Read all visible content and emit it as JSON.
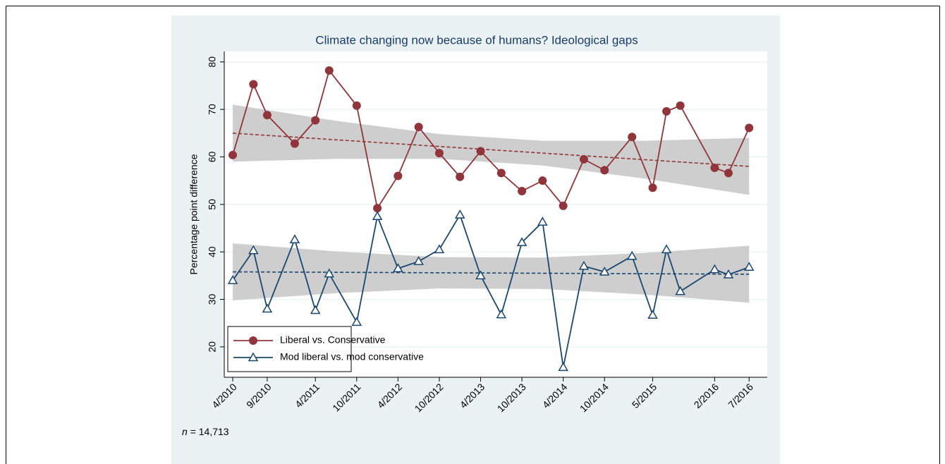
{
  "chart_data": {
    "type": "line",
    "title": "Climate changing now because of humans?  Ideological gaps",
    "y_label": "Percentage point difference",
    "annotation": {
      "variable": "n",
      "text": "= 14,713"
    },
    "x": [
      2010.25,
      2010.5,
      2010.667,
      2011.0,
      2011.25,
      2011.417,
      2011.75,
      2012.0,
      2012.25,
      2012.5,
      2012.75,
      2013.0,
      2013.25,
      2013.5,
      2013.75,
      2014.0,
      2014.25,
      2014.5,
      2014.75,
      2015.083,
      2015.333,
      2015.5,
      2015.667,
      2016.083,
      2016.25,
      2016.5
    ],
    "series": [
      {
        "name": "Liberal vs. Conservative",
        "color": "#90353b",
        "marker": "circle",
        "values": [
          60.4,
          75.3,
          68.8,
          62.8,
          67.7,
          78.2,
          70.8,
          49.2,
          56,
          66.3,
          60.8,
          55.8,
          61.2,
          56.6,
          52.8,
          55,
          49.7,
          59.5,
          57.2,
          64.2,
          53.5,
          69.6,
          70.8,
          57.7,
          56.6,
          66.1
        ],
        "fit": {
          "x": [
            2010.25,
            2011.5,
            2012.75,
            2014,
            2015.25,
            2016.5
          ],
          "values": [
            65,
            63.6,
            62.2,
            60.8,
            59.4,
            58
          ],
          "lower": [
            59,
            59.6,
            59.6,
            58.2,
            55.4,
            52
          ],
          "upper": [
            71,
            67.6,
            64.8,
            63.4,
            63.4,
            64
          ]
        }
      },
      {
        "name": "Mod liberal vs. mod conservative",
        "color": "#1a476f",
        "marker": "triangle",
        "values": [
          34,
          40.3,
          28,
          42.6,
          27.7,
          35.4,
          25.2,
          47.5,
          36.5,
          38,
          40.5,
          47.8,
          35,
          26.8,
          42,
          46.3,
          15.7,
          37,
          35.8,
          39.1,
          26.7,
          40.5,
          31.7,
          36.3,
          35.2,
          36.8
        ],
        "fit": {
          "x": [
            2010.25,
            2011.5,
            2012.75,
            2014,
            2015.25,
            2016.5
          ],
          "values": [
            35.8,
            35.7,
            35.6,
            35.5,
            35.4,
            35.3
          ],
          "lower": [
            29.8,
            31.3,
            32.3,
            32.2,
            31,
            29.3
          ],
          "upper": [
            41.8,
            40.1,
            38.9,
            38.8,
            39.8,
            41.3
          ]
        }
      }
    ],
    "band_color": "#c6c6c6",
    "xlim": [
      2010.147,
      2016.72
    ],
    "xticks": [
      {
        "value": 2010.25,
        "label": "4/2010"
      },
      {
        "value": 2010.667,
        "label": "9/2010"
      },
      {
        "value": 2011.25,
        "label": "4/2011"
      },
      {
        "value": 2011.75,
        "label": "10/2011"
      },
      {
        "value": 2012.25,
        "label": "4/2012"
      },
      {
        "value": 2012.75,
        "label": "10/2012"
      },
      {
        "value": 2013.25,
        "label": "4/2013"
      },
      {
        "value": 2013.75,
        "label": "10/2013"
      },
      {
        "value": 2014.25,
        "label": "4/2014"
      },
      {
        "value": 2014.75,
        "label": "10/2014"
      },
      {
        "value": 2015.333,
        "label": "5/2015"
      },
      {
        "value": 2016.083,
        "label": "2/2016"
      },
      {
        "value": 2016.5,
        "label": "7/2016"
      }
    ],
    "ylim": [
      13.6,
      82.2
    ],
    "yticks": [
      20,
      30,
      40,
      50,
      60,
      70,
      80
    ],
    "grid": true,
    "legend": "lower left"
  }
}
